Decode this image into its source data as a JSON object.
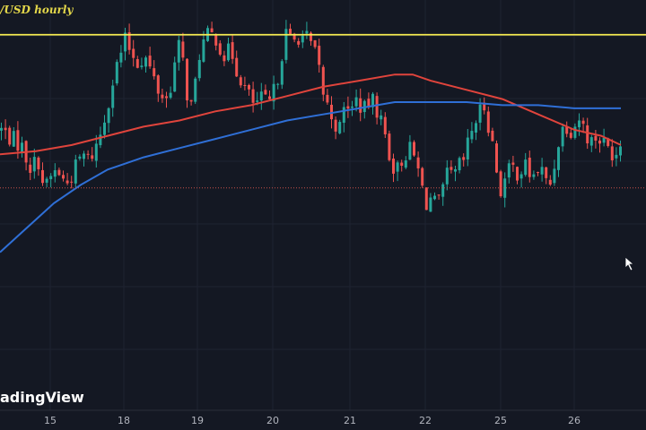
{
  "chart_title": "/USD hourly",
  "watermark": "adingView",
  "colors": {
    "background": "#141823",
    "grid": "#1e2331",
    "bull": "#26a69a",
    "bear": "#ef5350",
    "ma_short": "#e0443c",
    "ma_long": "#2f6fd6",
    "resistance": "#f5ea50",
    "last_price_line": "#c9504a",
    "axis_text": "#b2b5be"
  },
  "chart_data": {
    "type": "candlestick",
    "interval": "hourly",
    "x_axis": {
      "tick_labels": [
        "15",
        "18",
        "19",
        "20",
        "21",
        "22",
        "25",
        "26"
      ]
    },
    "y_axis": {
      "visible": false,
      "range_relative": [
        0,
        100
      ]
    },
    "grid": true,
    "legend": "none",
    "resistance_level": 91,
    "last_price": 41,
    "value_note": "prices are relative (0-100), no price scale is shown",
    "candles_close_path": [
      [
        0,
        60
      ],
      [
        12,
        57
      ],
      [
        22,
        55
      ],
      [
        32,
        48
      ],
      [
        42,
        50
      ],
      [
        48,
        40
      ],
      [
        54,
        44
      ],
      [
        62,
        47
      ],
      [
        72,
        42
      ],
      [
        80,
        46
      ],
      [
        90,
        52
      ],
      [
        98,
        50
      ],
      [
        106,
        55
      ],
      [
        112,
        60
      ],
      [
        118,
        68
      ],
      [
        126,
        78
      ],
      [
        132,
        84
      ],
      [
        138,
        89
      ],
      [
        146,
        85
      ],
      [
        152,
        82
      ],
      [
        160,
        84
      ],
      [
        168,
        78
      ],
      [
        176,
        72
      ],
      [
        184,
        70
      ],
      [
        190,
        76
      ],
      [
        196,
        86
      ],
      [
        200,
        88
      ],
      [
        204,
        78
      ],
      [
        208,
        70
      ],
      [
        214,
        66
      ],
      [
        218,
        82
      ],
      [
        224,
        88
      ],
      [
        232,
        91
      ],
      [
        240,
        90
      ],
      [
        248,
        84
      ],
      [
        256,
        86
      ],
      [
        262,
        80
      ],
      [
        268,
        76
      ],
      [
        274,
        72
      ],
      [
        282,
        68
      ],
      [
        290,
        70
      ],
      [
        298,
        68
      ],
      [
        306,
        74
      ],
      [
        312,
        84
      ],
      [
        318,
        92
      ],
      [
        324,
        88
      ],
      [
        332,
        91
      ],
      [
        340,
        90
      ],
      [
        348,
        86
      ],
      [
        354,
        80
      ],
      [
        360,
        70
      ],
      [
        366,
        66
      ],
      [
        372,
        62
      ],
      [
        378,
        60
      ],
      [
        384,
        70
      ],
      [
        390,
        66
      ],
      [
        396,
        70
      ],
      [
        404,
        66
      ],
      [
        412,
        70
      ],
      [
        420,
        66
      ],
      [
        428,
        58
      ],
      [
        434,
        50
      ],
      [
        440,
        46
      ],
      [
        446,
        50
      ],
      [
        454,
        54
      ],
      [
        462,
        50
      ],
      [
        468,
        42
      ],
      [
        474,
        36
      ],
      [
        480,
        38
      ],
      [
        486,
        34
      ],
      [
        492,
        40
      ],
      [
        498,
        46
      ],
      [
        504,
        44
      ],
      [
        510,
        48
      ],
      [
        516,
        50
      ],
      [
        522,
        58
      ],
      [
        530,
        64
      ],
      [
        538,
        68
      ],
      [
        546,
        58
      ],
      [
        550,
        50
      ],
      [
        556,
        40
      ],
      [
        562,
        44
      ],
      [
        568,
        48
      ],
      [
        576,
        46
      ],
      [
        584,
        48
      ],
      [
        592,
        44
      ],
      [
        600,
        48
      ],
      [
        606,
        44
      ],
      [
        610,
        40
      ],
      [
        616,
        48
      ],
      [
        622,
        58
      ],
      [
        628,
        62
      ],
      [
        636,
        60
      ],
      [
        644,
        64
      ],
      [
        650,
        60
      ],
      [
        656,
        56
      ],
      [
        664,
        58
      ],
      [
        670,
        56
      ],
      [
        676,
        54
      ],
      [
        684,
        52
      ],
      [
        690,
        56
      ],
      [
        694,
        41
      ]
    ],
    "series": [
      {
        "values_path": [
          [
            0,
            52
          ],
          [
            40,
            53
          ],
          [
            80,
            55
          ],
          [
            120,
            58
          ],
          [
            160,
            61
          ],
          [
            200,
            63
          ],
          [
            240,
            66
          ],
          [
            280,
            68
          ],
          [
            320,
            71
          ],
          [
            360,
            74
          ],
          [
            400,
            76
          ],
          [
            440,
            78
          ],
          [
            460,
            78
          ],
          [
            480,
            76
          ],
          [
            520,
            73
          ],
          [
            560,
            70
          ],
          [
            600,
            65
          ],
          [
            640,
            60
          ],
          [
            670,
            58
          ],
          [
            692,
            55
          ]
        ]
      },
      {
        "values_path": [
          [
            0,
            20
          ],
          [
            30,
            28
          ],
          [
            60,
            36
          ],
          [
            90,
            42
          ],
          [
            120,
            47
          ],
          [
            160,
            51
          ],
          [
            200,
            54
          ],
          [
            240,
            57
          ],
          [
            280,
            60
          ],
          [
            320,
            63
          ],
          [
            360,
            65
          ],
          [
            400,
            67
          ],
          [
            440,
            69
          ],
          [
            480,
            69
          ],
          [
            520,
            69
          ],
          [
            560,
            68
          ],
          [
            600,
            68
          ],
          [
            640,
            67
          ],
          [
            692,
            67
          ]
        ]
      }
    ]
  }
}
